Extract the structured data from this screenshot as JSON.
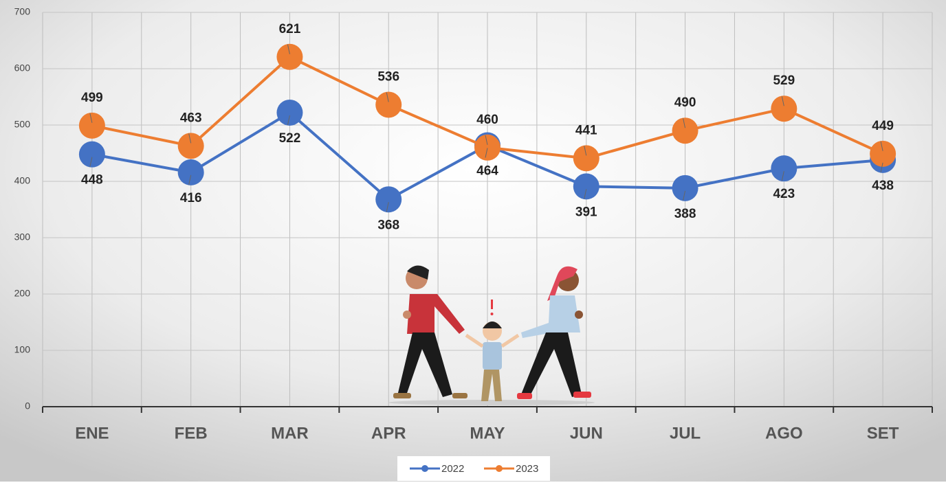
{
  "chart_data": {
    "type": "line",
    "categories": [
      "ENE",
      "FEB",
      "MAR",
      "APR",
      "MAY",
      "JUN",
      "JUL",
      "AGO",
      "SET"
    ],
    "series": [
      {
        "name": "2022",
        "color": "#4472c4",
        "values": [
          448,
          416,
          522,
          368,
          464,
          391,
          388,
          423,
          438
        ]
      },
      {
        "name": "2023",
        "color": "#ed7d31",
        "values": [
          499,
          463,
          621,
          536,
          460,
          441,
          490,
          529,
          449
        ]
      }
    ],
    "ylim": [
      0,
      700
    ],
    "yticks": [
      0,
      100,
      200,
      300,
      400,
      500,
      600,
      700
    ],
    "grid": true,
    "legend": "bottom"
  }
}
